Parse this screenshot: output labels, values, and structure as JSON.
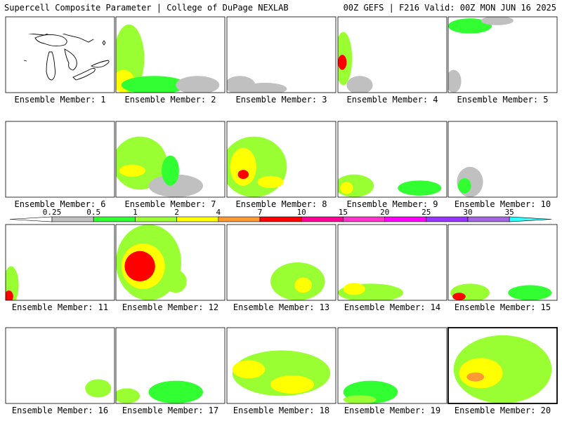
{
  "header": {
    "title_left": "Supercell Composite Parameter | College of DuPage NEXLAB",
    "title_right": "00Z GEFS | F216 Valid: 00Z MON JUN 16 2025"
  },
  "panel_caption_prefix": "Ensemble Member: ",
  "panels": [
    {
      "member": 1,
      "blobs": []
    },
    {
      "member": 2,
      "blobs": [
        [
          0.12,
          0.55,
          0.14,
          0.45,
          2
        ],
        [
          0.07,
          0.85,
          0.1,
          0.15,
          3
        ],
        [
          0.35,
          0.9,
          0.3,
          0.12,
          1
        ],
        [
          0.75,
          0.9,
          0.2,
          0.12,
          0
        ]
      ]
    },
    {
      "member": 3,
      "blobs": [
        [
          0.12,
          0.9,
          0.14,
          0.12,
          0
        ],
        [
          0.35,
          0.95,
          0.2,
          0.08,
          0
        ]
      ]
    },
    {
      "member": 4,
      "blobs": [
        [
          0.05,
          0.55,
          0.08,
          0.35,
          2
        ],
        [
          0.04,
          0.6,
          0.04,
          0.1,
          5
        ],
        [
          0.2,
          0.9,
          0.12,
          0.12,
          0
        ]
      ]
    },
    {
      "member": 5,
      "blobs": [
        [
          0.2,
          0.12,
          0.2,
          0.1,
          1
        ],
        [
          0.45,
          0.05,
          0.15,
          0.06,
          0
        ],
        [
          0.05,
          0.85,
          0.07,
          0.15,
          0
        ]
      ]
    },
    {
      "member": 6,
      "blobs": []
    },
    {
      "member": 7,
      "blobs": [
        [
          0.22,
          0.55,
          0.25,
          0.35,
          2
        ],
        [
          0.15,
          0.65,
          0.12,
          0.08,
          3
        ],
        [
          0.55,
          0.85,
          0.25,
          0.15,
          0
        ],
        [
          0.5,
          0.65,
          0.08,
          0.2,
          1
        ]
      ]
    },
    {
      "member": 8,
      "blobs": [
        [
          0.25,
          0.6,
          0.3,
          0.4,
          2
        ],
        [
          0.15,
          0.6,
          0.12,
          0.25,
          3
        ],
        [
          0.15,
          0.7,
          0.05,
          0.06,
          5
        ],
        [
          0.4,
          0.8,
          0.12,
          0.08,
          3
        ]
      ]
    },
    {
      "member": 9,
      "blobs": [
        [
          0.15,
          0.85,
          0.18,
          0.15,
          2
        ],
        [
          0.08,
          0.88,
          0.06,
          0.08,
          3
        ],
        [
          0.75,
          0.88,
          0.2,
          0.1,
          1
        ]
      ]
    },
    {
      "member": 10,
      "blobs": [
        [
          0.2,
          0.8,
          0.12,
          0.2,
          0
        ],
        [
          0.15,
          0.85,
          0.06,
          0.1,
          1
        ]
      ]
    },
    {
      "member": 11,
      "blobs": [
        [
          0.05,
          0.8,
          0.07,
          0.25,
          2
        ],
        [
          0.03,
          0.95,
          0.04,
          0.08,
          5
        ]
      ]
    },
    {
      "member": 12,
      "blobs": [
        [
          0.3,
          0.5,
          0.3,
          0.5,
          2
        ],
        [
          0.25,
          0.55,
          0.2,
          0.3,
          3
        ],
        [
          0.22,
          0.55,
          0.14,
          0.2,
          5
        ],
        [
          0.55,
          0.75,
          0.1,
          0.15,
          2
        ]
      ]
    },
    {
      "member": 13,
      "blobs": [
        [
          0.65,
          0.75,
          0.25,
          0.25,
          2
        ],
        [
          0.7,
          0.8,
          0.08,
          0.1,
          3
        ]
      ]
    },
    {
      "member": 14,
      "blobs": [
        [
          0.3,
          0.9,
          0.3,
          0.12,
          2
        ],
        [
          0.15,
          0.85,
          0.1,
          0.08,
          3
        ]
      ]
    },
    {
      "member": 15,
      "blobs": [
        [
          0.2,
          0.9,
          0.18,
          0.12,
          2
        ],
        [
          0.1,
          0.95,
          0.06,
          0.05,
          5
        ],
        [
          0.75,
          0.9,
          0.2,
          0.1,
          1
        ]
      ]
    },
    {
      "member": 16,
      "blobs": [
        [
          0.85,
          0.8,
          0.12,
          0.12,
          2
        ]
      ]
    },
    {
      "member": 17,
      "blobs": [
        [
          0.1,
          0.9,
          0.12,
          0.1,
          2
        ],
        [
          0.55,
          0.85,
          0.25,
          0.15,
          1
        ]
      ]
    },
    {
      "member": 18,
      "blobs": [
        [
          0.5,
          0.6,
          0.45,
          0.3,
          2
        ],
        [
          0.2,
          0.55,
          0.15,
          0.12,
          3
        ],
        [
          0.6,
          0.75,
          0.2,
          0.12,
          3
        ]
      ]
    },
    {
      "member": 19,
      "blobs": [
        [
          0.3,
          0.85,
          0.25,
          0.15,
          1
        ],
        [
          0.2,
          0.95,
          0.15,
          0.06,
          2
        ]
      ]
    },
    {
      "member": 20,
      "blobs": [
        [
          0.5,
          0.55,
          0.45,
          0.45,
          2
        ],
        [
          0.3,
          0.6,
          0.2,
          0.2,
          3
        ],
        [
          0.25,
          0.65,
          0.08,
          0.06,
          4
        ]
      ]
    }
  ],
  "legend": {
    "thresholds": [
      "0.25",
      "0.5",
      "1",
      "2",
      "4",
      "7",
      "10",
      "15",
      "20",
      "25",
      "30",
      "35"
    ],
    "colors": [
      "#c0c0c0",
      "#32ff32",
      "#99ff33",
      "#ffff00",
      "#ff9933",
      "#ff0000",
      "#ff0099",
      "#ff33cc",
      "#ff00ff",
      "#9933ff",
      "#a366e0",
      "#33ffff"
    ]
  },
  "colors": {
    "map_line": "#000000",
    "frame_highlight": "#000000"
  }
}
